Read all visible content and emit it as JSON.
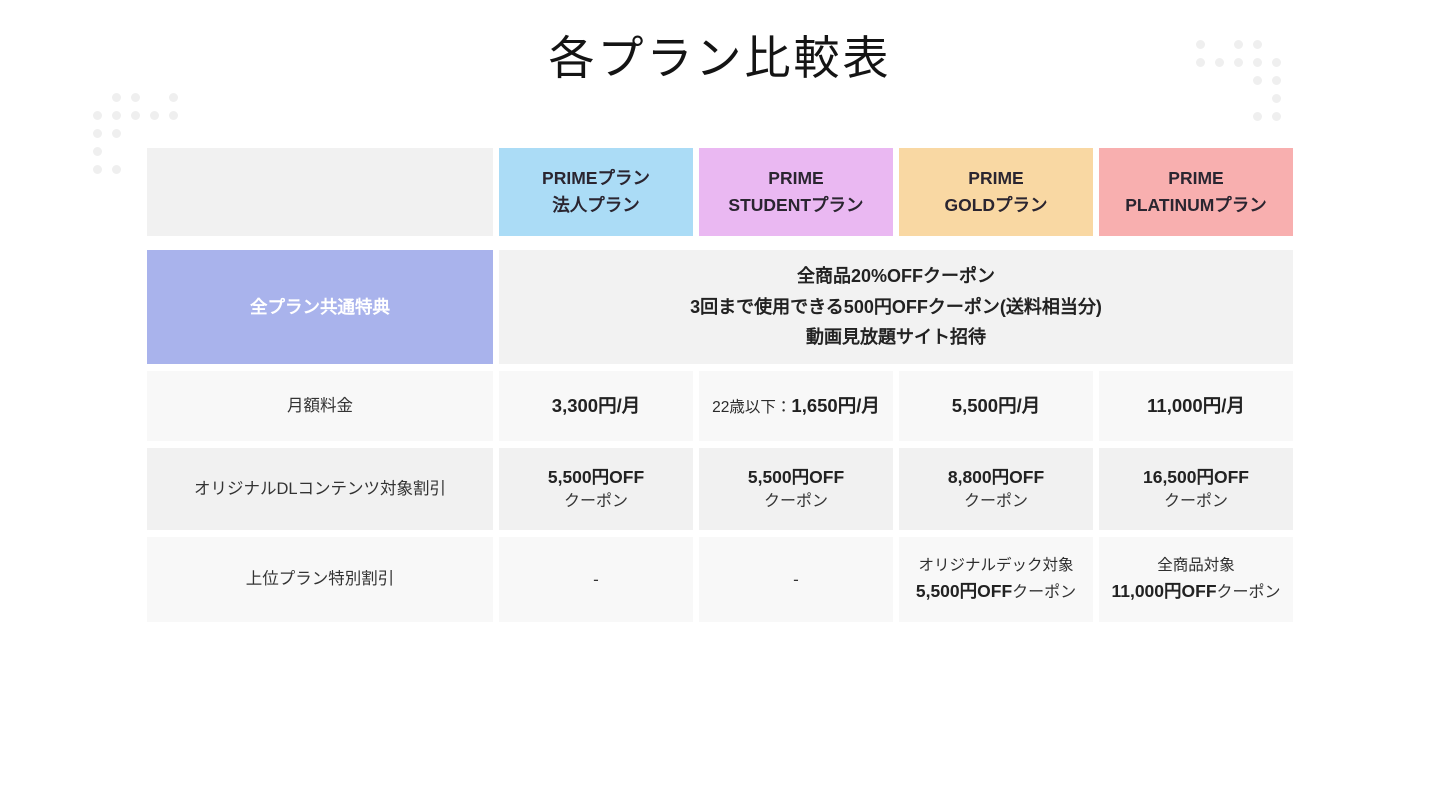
{
  "title": "各プラン比較表",
  "colors": {
    "plan_business_bg": "#abdcf6",
    "plan_student_bg": "#eab8f2",
    "plan_gold_bg": "#f9d8a3",
    "plan_platinum_bg": "#f8afaf",
    "common_label_bg": "#a9b3ec"
  },
  "table": {
    "plans": [
      {
        "name_line1": "PRIMEプラン",
        "name_line2": "法人プラン"
      },
      {
        "name_line1": "PRIME",
        "name_line2": "STUDENTプラン"
      },
      {
        "name_line1": "PRIME",
        "name_line2": "GOLDプラン"
      },
      {
        "name_line1": "PRIME",
        "name_line2": "PLATINUMプラン"
      }
    ],
    "common_benefits": {
      "label": "全プラン共通特典",
      "line1": "全商品20%OFFクーポン",
      "line2": "3回まで使用できる500円OFFクーポン(送料相当分)",
      "line3": "動画見放題サイト招待"
    },
    "monthly_fee": {
      "label": "月額料金",
      "business": "3,300円/月",
      "student_prefix": "22歳以下：",
      "student_value": "1,650円/月",
      "gold": "5,500円/月",
      "platinum": "11,000円/月"
    },
    "dl_discount": {
      "label": "オリジナルDLコンテンツ対象割引",
      "business_value": "5,500円OFF",
      "business_sub": "クーポン",
      "student_value": "5,500円OFF",
      "student_sub": "クーポン",
      "gold_value": "8,800円OFF",
      "gold_sub": "クーポン",
      "platinum_value": "16,500円OFF",
      "platinum_sub": "クーポン"
    },
    "upper_plan_discount": {
      "label": "上位プラン特別割引",
      "business": "-",
      "student": "-",
      "gold_line1": "オリジナルデック対象",
      "gold_value": "5,500円OFF",
      "gold_suffix": "クーポン",
      "platinum_line1": "全商品対象",
      "platinum_value": "11,000円OFF",
      "platinum_suffix": "クーポン"
    }
  }
}
